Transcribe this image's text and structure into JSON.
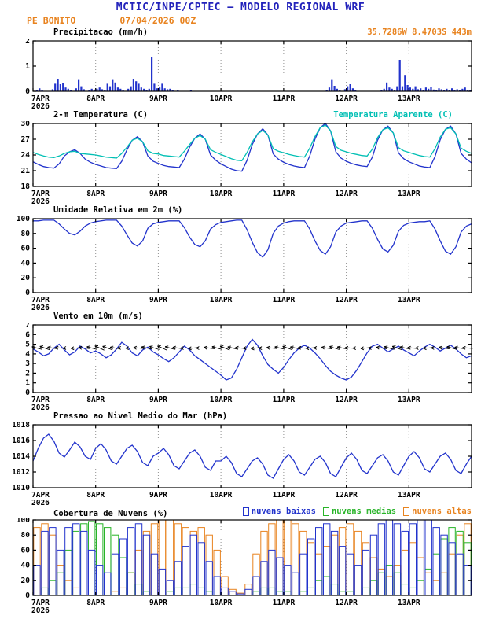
{
  "header": {
    "title": "MCTIC/INPE/CPTEC — MODELO REGIONAL WRF",
    "station": "PE BONITO",
    "run": "07/04/2026 00Z",
    "location": "35.7286W 8.4703S 443m"
  },
  "colors": {
    "title_blue": "#2222bb",
    "orange": "#e8831f",
    "line_blue": "#2233cc",
    "cyan": "#00bfb4",
    "green": "#28b428",
    "black": "#000000"
  },
  "x_axis": {
    "ticks": [
      "7APR",
      "8APR",
      "9APR",
      "10APR",
      "11APR",
      "12APR",
      "13APR"
    ],
    "year": "2026",
    "total_hours": 168
  },
  "chart_data": [
    {
      "key": "precipitation",
      "type": "bar",
      "title": "Precipitacao (mm/h)",
      "ylabel": "mm/h",
      "ylim": [
        0,
        2
      ],
      "yticks": [
        0,
        1,
        2
      ],
      "x_step_hours": 1,
      "bar_color": "#2233cc",
      "values": [
        0,
        0.05,
        0.12,
        0.06,
        0,
        0,
        0,
        0.08,
        0.3,
        0.5,
        0.28,
        0.32,
        0.15,
        0.1,
        0.05,
        0,
        0.12,
        0.45,
        0.2,
        0.08,
        0,
        0.05,
        0.1,
        0.07,
        0.1,
        0.15,
        0.08,
        0.05,
        0.3,
        0.2,
        0.45,
        0.35,
        0.15,
        0.1,
        0.05,
        0,
        0.1,
        0.2,
        0.5,
        0.4,
        0.3,
        0.15,
        0.1,
        0.05,
        0.1,
        1.35,
        0.3,
        0.12,
        0.15,
        0.3,
        0.12,
        0.08,
        0.1,
        0.05,
        0,
        0.05,
        0,
        0,
        0,
        0,
        0.05,
        0,
        0,
        0,
        0,
        0,
        0,
        0,
        0,
        0,
        0,
        0,
        0,
        0,
        0,
        0,
        0,
        0,
        0,
        0,
        0,
        0,
        0,
        0,
        0,
        0,
        0,
        0,
        0,
        0,
        0,
        0,
        0,
        0,
        0,
        0,
        0,
        0,
        0,
        0,
        0,
        0,
        0,
        0,
        0,
        0,
        0,
        0,
        0,
        0,
        0,
        0,
        0.05,
        0.15,
        0.45,
        0.22,
        0.1,
        0.05,
        0,
        0.08,
        0.2,
        0.28,
        0.12,
        0.05,
        0,
        0,
        0,
        0,
        0,
        0,
        0,
        0,
        0,
        0.05,
        0.1,
        0.35,
        0.15,
        0.1,
        0.05,
        0.2,
        1.25,
        0.2,
        0.65,
        0.25,
        0.15,
        0.1,
        0.2,
        0.08,
        0.12,
        0.05,
        0.15,
        0.1,
        0.18,
        0.07,
        0.05,
        0.12,
        0.08,
        0.05,
        0.1,
        0.06,
        0.12,
        0.05,
        0.08,
        0.05,
        0.1,
        0.15,
        0.06,
        0.04
      ]
    },
    {
      "key": "temperature",
      "type": "line",
      "title": "2-m Temperatura (C)",
      "ylim": [
        18,
        30
      ],
      "yticks": [
        18,
        21,
        24,
        27,
        30
      ],
      "x_step_hours": 2,
      "series": [
        {
          "key": "temp-2m",
          "name": "2-m Temperatura (C)",
          "color": "#2233cc",
          "values": [
            22.7,
            22.2,
            21.8,
            21.6,
            21.5,
            22.3,
            23.8,
            24.6,
            25.0,
            24.3,
            23.2,
            22.6,
            22.2,
            21.9,
            21.6,
            21.5,
            21.4,
            22.8,
            25.0,
            26.8,
            27.5,
            26.5,
            23.8,
            22.8,
            22.4,
            22.0,
            21.8,
            21.7,
            21.6,
            23.2,
            25.5,
            27.2,
            28.0,
            27.0,
            24.0,
            23.0,
            22.3,
            21.8,
            21.3,
            21.0,
            20.9,
            23.0,
            26.0,
            28.0,
            29.0,
            27.8,
            24.2,
            23.2,
            22.6,
            22.2,
            21.9,
            21.7,
            21.6,
            23.8,
            27.0,
            29.2,
            30.0,
            28.6,
            24.6,
            23.4,
            22.8,
            22.4,
            22.1,
            21.9,
            21.8,
            23.6,
            26.8,
            28.8,
            29.5,
            28.2,
            24.4,
            23.3,
            22.7,
            22.3,
            21.9,
            21.7,
            21.6,
            23.7,
            26.9,
            28.9,
            29.5,
            28.0,
            24.3,
            23.2,
            22.5
          ]
        },
        {
          "key": "temp-apparent",
          "name": "Temperatura Aparente (C)",
          "color": "#00bfb4",
          "values": [
            24.5,
            24.1,
            23.8,
            23.6,
            23.5,
            23.8,
            24.3,
            24.6,
            24.7,
            24.3,
            24.2,
            24.1,
            24.0,
            23.8,
            23.6,
            23.5,
            23.4,
            24.3,
            25.5,
            26.8,
            27.2,
            26.5,
            24.8,
            24.3,
            24.2,
            23.9,
            23.8,
            23.7,
            23.6,
            24.7,
            26.0,
            27.2,
            27.7,
            27.0,
            25.0,
            24.5,
            24.1,
            23.7,
            23.3,
            23.0,
            22.9,
            24.5,
            26.5,
            28.0,
            28.7,
            27.8,
            25.2,
            24.7,
            24.4,
            24.1,
            23.9,
            23.7,
            23.6,
            25.3,
            27.5,
            29.2,
            29.7,
            28.6,
            25.6,
            24.9,
            24.6,
            24.3,
            24.1,
            23.9,
            23.8,
            25.1,
            27.3,
            28.8,
            29.2,
            28.2,
            25.4,
            24.8,
            24.5,
            24.2,
            23.9,
            23.7,
            23.6,
            25.2,
            27.4,
            28.9,
            29.2,
            28.0,
            25.3,
            24.7,
            24.3
          ]
        }
      ]
    },
    {
      "key": "humidity",
      "type": "line",
      "title": "Umidade Relativa em 2m (%)",
      "ylim": [
        0,
        100
      ],
      "yticks": [
        0,
        20,
        40,
        60,
        80,
        100
      ],
      "x_step_hours": 2,
      "series": [
        {
          "key": "humidity-2m",
          "name": "Umidade Relativa em 2m (%)",
          "color": "#2233cc",
          "values": [
            97,
            97,
            98,
            98,
            98,
            93,
            86,
            80,
            78,
            83,
            90,
            94,
            96,
            97,
            98,
            98,
            98,
            90,
            78,
            67,
            63,
            70,
            87,
            93,
            95,
            96,
            97,
            97,
            97,
            88,
            75,
            65,
            62,
            70,
            86,
            92,
            95,
            96,
            97,
            98,
            98,
            85,
            68,
            54,
            48,
            58,
            80,
            90,
            94,
            96,
            97,
            97,
            97,
            86,
            70,
            57,
            52,
            62,
            82,
            90,
            94,
            95,
            96,
            97,
            97,
            87,
            72,
            59,
            55,
            64,
            83,
            91,
            94,
            95,
            96,
            96,
            97,
            86,
            70,
            56,
            52,
            62,
            82,
            90,
            93
          ]
        }
      ]
    },
    {
      "key": "wind",
      "type": "line",
      "title": "Vento em 10m (m/s)",
      "ylim": [
        0,
        7
      ],
      "yticks": [
        0,
        1,
        2,
        3,
        4,
        5,
        6,
        7
      ],
      "x_step_hours": 2,
      "series": [
        {
          "key": "wind-10m",
          "name": "Vento em 10m (m/s)",
          "color": "#2233cc",
          "values": [
            4.5,
            4.2,
            3.8,
            4.0,
            4.6,
            5.0,
            4.4,
            3.9,
            4.2,
            4.8,
            4.5,
            4.1,
            4.3,
            4.0,
            3.6,
            3.9,
            4.5,
            5.2,
            4.8,
            4.1,
            3.8,
            4.4,
            4.7,
            4.2,
            3.9,
            3.5,
            3.2,
            3.6,
            4.2,
            4.8,
            4.4,
            3.8,
            3.4,
            3.0,
            2.6,
            2.2,
            1.8,
            1.3,
            1.5,
            2.4,
            3.6,
            4.8,
            5.5,
            4.9,
            3.8,
            2.9,
            2.4,
            2.0,
            2.6,
            3.4,
            4.1,
            4.6,
            4.9,
            4.6,
            4.1,
            3.5,
            2.8,
            2.2,
            1.8,
            1.5,
            1.3,
            1.6,
            2.3,
            3.2,
            4.1,
            4.8,
            5.0,
            4.6,
            4.2,
            4.5,
            4.8,
            4.4,
            4.1,
            3.8,
            4.3,
            4.7,
            5.0,
            4.7,
            4.3,
            4.6,
            4.9,
            4.5,
            4.0,
            3.6,
            3.8
          ]
        }
      ],
      "barbs": {
        "y_value": 4.6,
        "step_hours": 3,
        "angles_deg": [
          195,
          200,
          190,
          185,
          180,
          175,
          185,
          195,
          205,
          200,
          190,
          182,
          178,
          185,
          192,
          198,
          204,
          196,
          188,
          180,
          174,
          180,
          188,
          196,
          202,
          194,
          186,
          178,
          172,
          178,
          186,
          194,
          200,
          192,
          184,
          176,
          182,
          190,
          198,
          192,
          184,
          178,
          174,
          180,
          188,
          196,
          200,
          192,
          186,
          180,
          176,
          182,
          190,
          196,
          190,
          184
        ]
      }
    },
    {
      "key": "pressure",
      "type": "line",
      "title": "Pressao ao Nivel Medio do Mar (hPa)",
      "ylim": [
        1010,
        1018
      ],
      "yticks": [
        1010,
        1012,
        1014,
        1016,
        1018
      ],
      "x_step_hours": 2,
      "series": [
        {
          "key": "pressure-mslp",
          "name": "Pressao ao Nivel Medio do Mar (hPa)",
          "color": "#2233cc",
          "values": [
            1013.4,
            1015.0,
            1016.3,
            1016.8,
            1015.9,
            1014.4,
            1013.9,
            1014.8,
            1015.8,
            1015.2,
            1014.0,
            1013.6,
            1015.0,
            1015.6,
            1014.8,
            1013.4,
            1013.0,
            1014.0,
            1015.0,
            1015.4,
            1014.6,
            1013.2,
            1012.8,
            1014.0,
            1014.4,
            1015.0,
            1014.2,
            1012.8,
            1012.4,
            1013.4,
            1014.4,
            1014.8,
            1014.0,
            1012.6,
            1012.2,
            1013.4,
            1013.4,
            1014.0,
            1013.2,
            1011.8,
            1011.4,
            1012.4,
            1013.4,
            1013.8,
            1013.0,
            1011.6,
            1011.2,
            1012.4,
            1013.6,
            1014.2,
            1013.4,
            1012.0,
            1011.6,
            1012.6,
            1013.6,
            1014.0,
            1013.2,
            1011.8,
            1011.4,
            1012.6,
            1013.8,
            1014.4,
            1013.6,
            1012.2,
            1011.8,
            1012.8,
            1013.8,
            1014.2,
            1013.4,
            1012.0,
            1011.6,
            1012.8,
            1014.0,
            1014.6,
            1013.8,
            1012.4,
            1012.0,
            1013.0,
            1014.0,
            1014.4,
            1013.6,
            1012.2,
            1011.8,
            1013.0,
            1014.0
          ]
        }
      ]
    },
    {
      "key": "clouds",
      "type": "bar",
      "title": "Cobertura de Nuvens (%)",
      "ylim": [
        0,
        100
      ],
      "yticks": [
        0,
        20,
        40,
        60,
        80,
        100
      ],
      "x_step_hours": 3,
      "series": [
        {
          "key": "clouds-low",
          "name": "nuvens baixas",
          "color": "#2233cc",
          "values": [
            40,
            85,
            90,
            60,
            90,
            95,
            85,
            60,
            40,
            30,
            55,
            75,
            90,
            95,
            80,
            55,
            35,
            20,
            45,
            65,
            80,
            70,
            45,
            25,
            10,
            5,
            2,
            8,
            25,
            45,
            60,
            50,
            40,
            30,
            55,
            75,
            90,
            95,
            85,
            65,
            55,
            40,
            60,
            80,
            95,
            100,
            95,
            85,
            95,
            100,
            100,
            90,
            80,
            70,
            55,
            40
          ]
        },
        {
          "key": "clouds-mid",
          "name": "nuvens medias",
          "color": "#28b428",
          "values": [
            0,
            10,
            20,
            30,
            60,
            85,
            95,
            98,
            95,
            90,
            80,
            50,
            30,
            15,
            5,
            0,
            0,
            5,
            10,
            10,
            15,
            10,
            5,
            0,
            0,
            0,
            0,
            0,
            5,
            10,
            10,
            5,
            5,
            0,
            5,
            10,
            20,
            25,
            15,
            5,
            5,
            0,
            10,
            20,
            30,
            40,
            30,
            15,
            10,
            20,
            35,
            55,
            75,
            90,
            85,
            70
          ]
        },
        {
          "key": "clouds-high",
          "name": "nuvens altas",
          "color": "#e8831f",
          "values": [
            90,
            95,
            80,
            40,
            20,
            10,
            0,
            0,
            0,
            0,
            5,
            10,
            30,
            60,
            85,
            95,
            100,
            100,
            95,
            90,
            85,
            90,
            80,
            60,
            25,
            8,
            3,
            15,
            55,
            85,
            95,
            100,
            100,
            95,
            85,
            70,
            55,
            65,
            80,
            90,
            95,
            85,
            70,
            50,
            35,
            25,
            40,
            60,
            70,
            50,
            30,
            20,
            30,
            55,
            80,
            95
          ]
        }
      ]
    }
  ]
}
